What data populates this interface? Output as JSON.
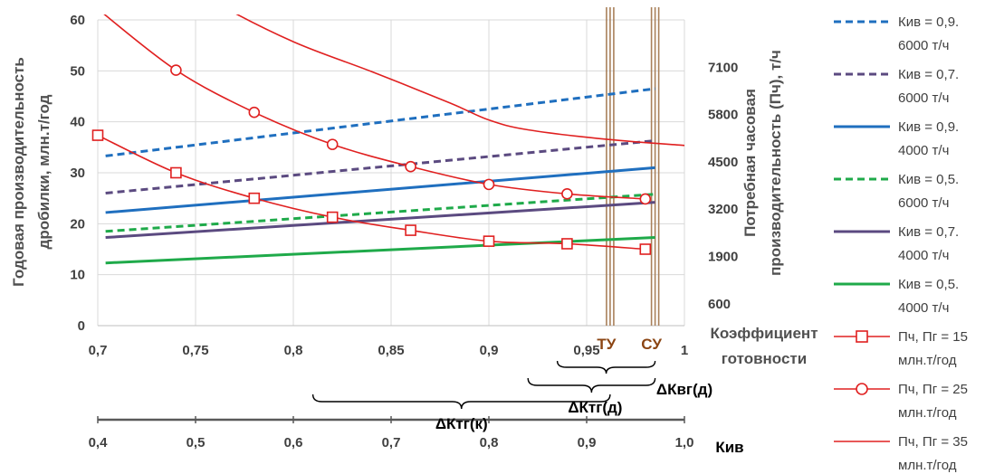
{
  "chart_data": {
    "type": "line",
    "xlabel": "Коэффициент готовности",
    "xlabel_lines": [
      "Коэффициент",
      "готовности"
    ],
    "xlim": [
      0.7,
      1.0
    ],
    "x_ticks": [
      "0,7",
      "0,75",
      "0,8",
      "0,85",
      "0,9",
      "0,95",
      "1"
    ],
    "ylabel_left": "Годовая производительность дробилки, млн.т/год",
    "ylabel_left_lines": [
      "Годовая производительность",
      "дробилки, млн.т/год"
    ],
    "ylim_left": [
      0,
      60
    ],
    "y_left_ticks": [
      "0",
      "10",
      "20",
      "30",
      "40",
      "50",
      "60"
    ],
    "ylabel_right": "Потребная часовая производительность (Пч), т/ч",
    "ylabel_right_lines": [
      "Потребная часовая",
      "производительность (Пч), т/ч"
    ],
    "ylim_right": [
      0,
      8400
    ],
    "y_right_ticks": [
      "600",
      "1900",
      "3200",
      "4500",
      "5800",
      "7100"
    ],
    "grid": true,
    "legend_position": "right",
    "secondary_axis": {
      "label": "Кив",
      "xlim": [
        0.4,
        1.0
      ],
      "ticks": [
        "0,4",
        "0,5",
        "0,6",
        "0,7",
        "0,8",
        "0,9",
        "1,0"
      ]
    },
    "vertical_markers": [
      {
        "label": "ТУ",
        "x": 0.962
      },
      {
        "label": "СУ",
        "x": 0.985
      }
    ],
    "brackets": [
      {
        "label": "ΔКтг(к)",
        "from": 0.81,
        "to": 0.962
      },
      {
        "label": "ΔКтг(д)",
        "from": 0.92,
        "to": 0.985
      },
      {
        "label": "ΔКвг(д)",
        "from": 0.935,
        "to": 0.985
      }
    ],
    "series": [
      {
        "name": "Кив = 0,9. 6000 т/ч",
        "name_lines": [
          "Кив = 0,9.",
          "6000 т/ч"
        ],
        "color": "#1f6fbf",
        "dash": true,
        "axis": "left",
        "x": [
          0.704,
          0.985
        ],
        "y": [
          33.3,
          46.5
        ]
      },
      {
        "name": "Кив = 0,7. 6000 т/ч",
        "name_lines": [
          "Кив = 0,7.",
          "6000 т/ч"
        ],
        "color": "#5b4a80",
        "dash": true,
        "axis": "left",
        "x": [
          0.704,
          0.985
        ],
        "y": [
          26.0,
          36.3
        ]
      },
      {
        "name": "Кив = 0,9. 4000 т/ч",
        "name_lines": [
          "Кив = 0,9.",
          "4000 т/ч"
        ],
        "color": "#1f6fbf",
        "dash": false,
        "axis": "left",
        "x": [
          0.704,
          0.985
        ],
        "y": [
          22.2,
          31.0
        ]
      },
      {
        "name": "Кив = 0,5. 6000 т/ч",
        "name_lines": [
          "Кив = 0,5.",
          "6000 т/ч"
        ],
        "color": "#1faa4a",
        "dash": true,
        "axis": "left",
        "x": [
          0.704,
          0.985
        ],
        "y": [
          18.5,
          25.8
        ]
      },
      {
        "name": "Кив = 0,7. 4000 т/ч",
        "name_lines": [
          "Кив = 0,7.",
          "4000 т/ч"
        ],
        "color": "#5b4a80",
        "dash": false,
        "axis": "left",
        "x": [
          0.704,
          0.985
        ],
        "y": [
          17.3,
          24.2
        ]
      },
      {
        "name": "Кив = 0,5. 4000 т/ч",
        "name_lines": [
          "Кив = 0,5.",
          "4000 т/ч"
        ],
        "color": "#1faa4a",
        "dash": false,
        "axis": "left",
        "x": [
          0.704,
          0.985
        ],
        "y": [
          12.3,
          17.3
        ]
      },
      {
        "name": "Пч, Пг = 15 млн.т/год",
        "name_lines": [
          "Пч, Пг = 15",
          "млн.т/год"
        ],
        "color": "#e02020",
        "dash": false,
        "axis": "right",
        "marker": "square",
        "x": [
          0.7,
          0.74,
          0.78,
          0.82,
          0.86,
          0.9,
          0.94,
          0.98
        ],
        "y": [
          5230,
          4200,
          3500,
          2980,
          2620,
          2320,
          2250,
          2100
        ]
      },
      {
        "name": "Пч, Пг = 25 млн.т/год",
        "name_lines": [
          "Пч, Пг = 25",
          "млн.т/год"
        ],
        "color": "#e02020",
        "dash": false,
        "axis": "right",
        "marker": "circle",
        "x": [
          0.7,
          0.74,
          0.78,
          0.82,
          0.86,
          0.9,
          0.94,
          0.98
        ],
        "y": [
          8700,
          7020,
          5860,
          4980,
          4370,
          3880,
          3620,
          3480
        ]
      },
      {
        "name": "Пч, Пг = 35 млн.т/год",
        "name_lines": [
          "Пч, Пг = 35",
          "млн.т/год"
        ],
        "color": "#e02020",
        "dash": false,
        "axis": "right",
        "x": [
          0.72,
          0.76,
          0.8,
          0.84,
          0.88,
          0.9,
          0.92,
          0.96,
          1.0
        ],
        "y": [
          10200,
          8880,
          7800,
          6980,
          6120,
          5650,
          5380,
          5120,
          4950
        ]
      }
    ]
  }
}
